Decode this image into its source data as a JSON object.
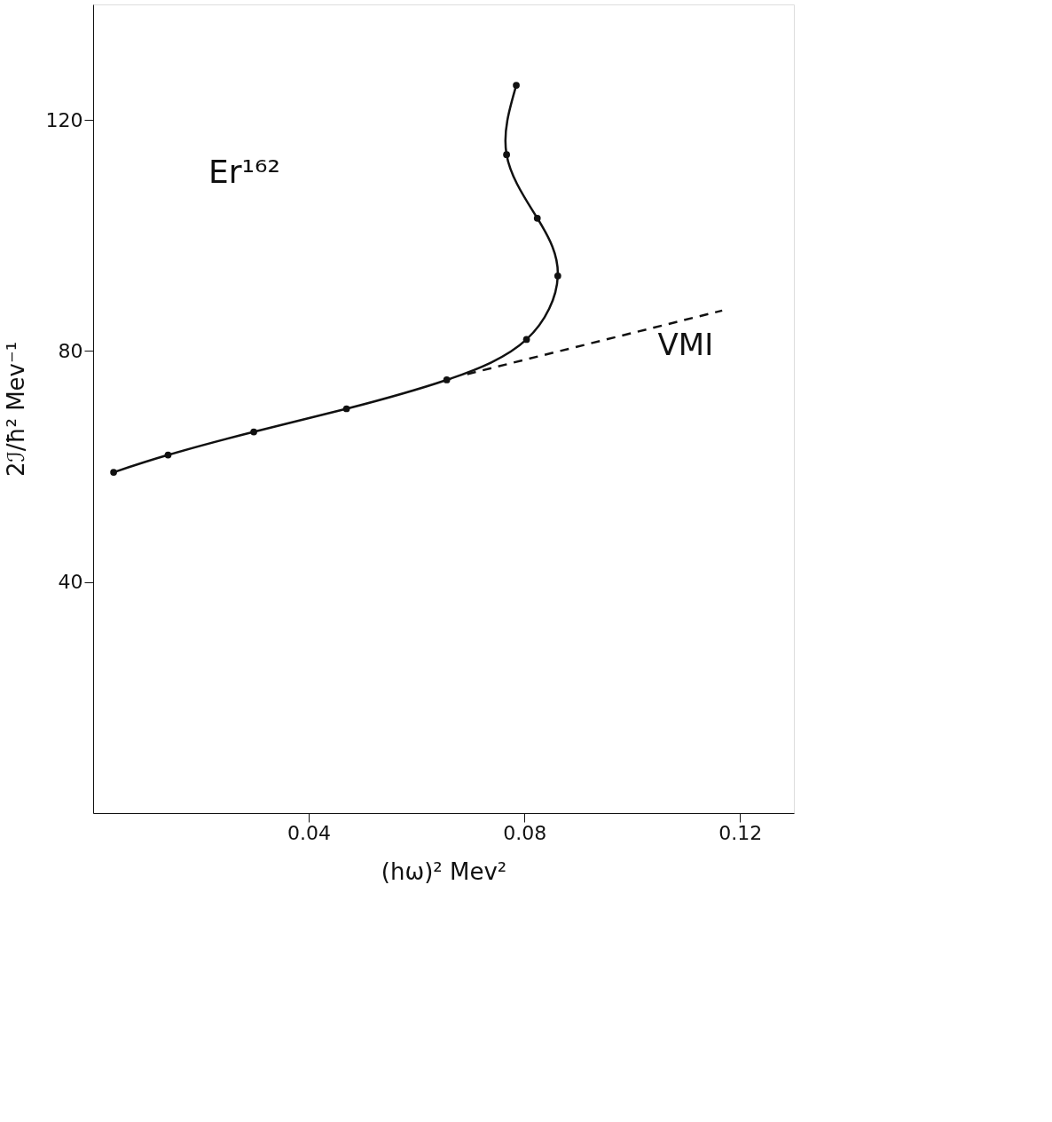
{
  "chart_data": {
    "type": "line",
    "xlabel": "(hω)²  Mev²",
    "ylabel": "2ℐ/ħ²  Mev⁻¹",
    "annotations": [
      "Er¹⁶²"
    ],
    "xlim": [
      0,
      0.13
    ],
    "ylim": [
      0,
      140
    ],
    "xticks": [
      0.04,
      0.08,
      0.12
    ],
    "yticks": [
      40,
      80,
      120
    ],
    "grid": false,
    "series": [
      {
        "color": "#111111",
        "marker": "circle",
        "line_style": "solid",
        "x": [
          0.0038,
          0.0139,
          0.0298,
          0.047,
          0.0656,
          0.0804,
          0.0862,
          0.0824,
          0.0767,
          0.0785
        ],
        "values": [
          59,
          62,
          66,
          70,
          75,
          82,
          93,
          103,
          114,
          126
        ]
      },
      {
        "name": "VMI",
        "color": "#111111",
        "marker": "none",
        "line_style": "dashed",
        "x": [
          0.0694,
          0.1167
        ],
        "values": [
          76,
          87
        ]
      }
    ]
  }
}
